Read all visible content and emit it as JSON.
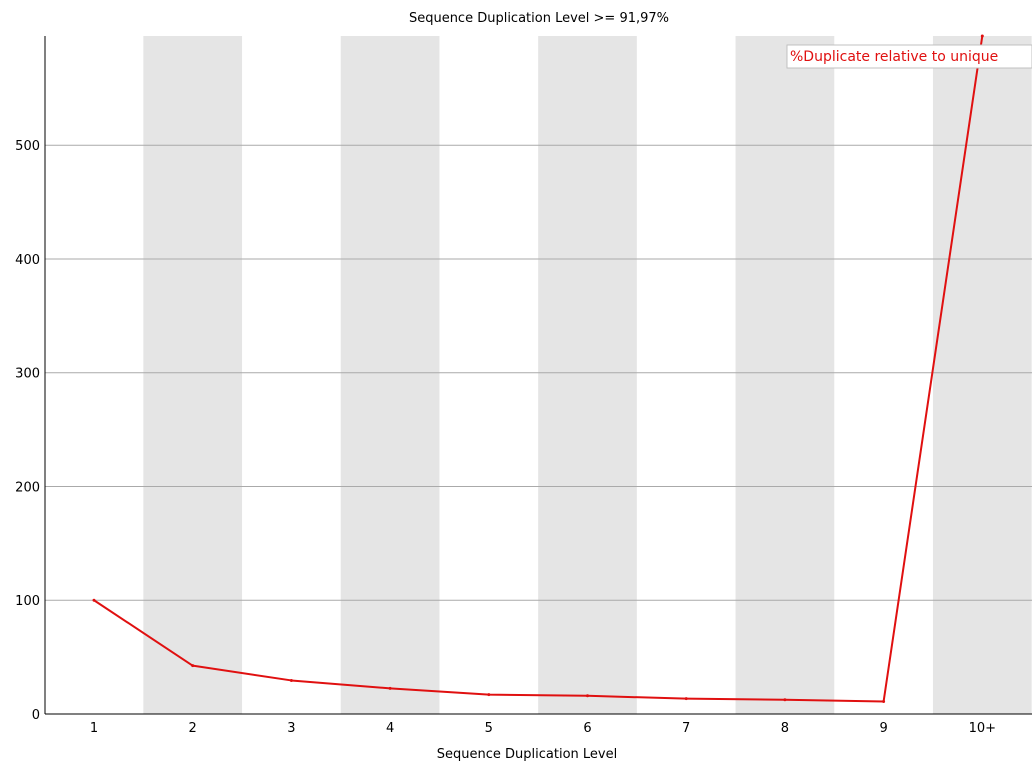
{
  "chart_data": {
    "type": "line",
    "title": "Sequence Duplication Level >= 91,97%",
    "xlabel": "Sequence Duplication Level",
    "ylabel": "",
    "categories": [
      "1",
      "2",
      "3",
      "4",
      "5",
      "6",
      "7",
      "8",
      "9",
      "10+"
    ],
    "series": [
      {
        "name": "%Duplicate relative to unique",
        "color": "#e01010",
        "values": [
          100,
          42.5,
          29.5,
          22.5,
          17.0,
          16.0,
          13.5,
          12.5,
          11.0,
          596
        ]
      }
    ],
    "ylim": [
      0,
      596
    ],
    "yticks": [
      0,
      100,
      200,
      300,
      400,
      500
    ],
    "grid": true,
    "alternating_band_color": "#e5e5e5",
    "legend_position": "top-right"
  }
}
